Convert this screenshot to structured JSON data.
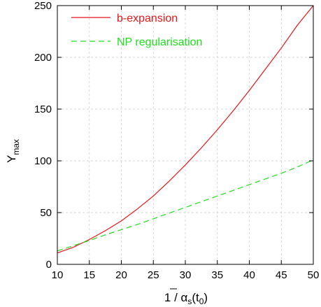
{
  "chart_data": {
    "type": "line",
    "title": "",
    "xlabel": {
      "prefix": "1 / ",
      "symbol": "α",
      "sub": "s",
      "mid": "(t",
      "sub2": "0",
      "suffix": ")"
    },
    "ylabel": {
      "main": "Y",
      "sub": "max"
    },
    "xlim": [
      10,
      50
    ],
    "ylim": [
      0,
      250
    ],
    "xticks": [
      "10",
      "15",
      "20",
      "25",
      "30",
      "35",
      "40",
      "45",
      "50"
    ],
    "yticks": [
      "0",
      "50",
      "100",
      "150",
      "200",
      "250"
    ],
    "grid": true,
    "legend_position": "top-left",
    "series": [
      {
        "name": "b-expansion",
        "color": "#e8141a",
        "dash": "solid",
        "x": [
          10,
          12.5,
          15,
          17.5,
          20,
          22.5,
          25,
          27.5,
          30,
          32.5,
          35,
          37.5,
          40,
          42.5,
          45,
          47.5,
          50
        ],
        "y": [
          11,
          16.5,
          24,
          32.5,
          42,
          53.5,
          66,
          80.5,
          96,
          112.5,
          130,
          148.5,
          168,
          188.5,
          209,
          231,
          251
        ]
      },
      {
        "name": "NP regularisation",
        "color": "#1ee01e",
        "dash": "dashed",
        "x": [
          10,
          12.5,
          15,
          17.5,
          20,
          22.5,
          25,
          27.5,
          30,
          32.5,
          35,
          37.5,
          40,
          42.5,
          45,
          47.5,
          50
        ],
        "y": [
          13,
          18,
          23,
          28.5,
          33.5,
          38.5,
          44,
          49.5,
          55,
          60.5,
          66,
          71.5,
          77,
          82.5,
          88,
          94,
          101
        ]
      }
    ]
  }
}
